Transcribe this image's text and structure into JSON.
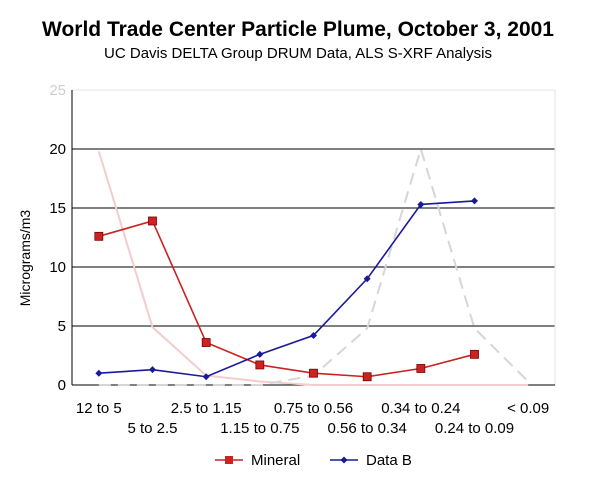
{
  "chart_data": {
    "type": "line",
    "title": "World Trade Center Particle Plume, October 3, 2001",
    "subtitle": "UC Davis DELTA Group DRUM Data,  ALS S-XRF Analysis",
    "ylabel": "Micrograms/m3",
    "xlabel": "",
    "ylim": [
      0,
      25
    ],
    "yticks": [
      "0",
      "5",
      "10",
      "15",
      "20",
      "25"
    ],
    "grid": true,
    "legend_position": "bottom",
    "categories": [
      "12 to 5",
      "5 to 2.5",
      "2.5 to 1.15",
      "1.15 to 0.75",
      "0.75 to 0.56",
      "0.56 to 0.34",
      "0.34 to 0.24",
      "0.24 to 0.09",
      "< 0.09"
    ],
    "series": [
      {
        "name": "Mineral",
        "color": "#cc2222",
        "marker": "square",
        "values": [
          12.6,
          13.9,
          3.6,
          1.7,
          1.0,
          0.7,
          1.4,
          2.6,
          null
        ]
      },
      {
        "name": "Data B",
        "color": "#1a1a99",
        "marker": "diamond",
        "values": [
          1.0,
          1.3,
          0.7,
          2.6,
          4.2,
          9.0,
          15.3,
          15.6,
          null
        ]
      },
      {
        "name": "",
        "color": "#f4cccc",
        "marker": "none",
        "values": [
          19.8,
          4.9,
          0.8,
          0.3,
          0.0,
          0.0,
          0.0,
          0.0,
          0.0
        ]
      },
      {
        "name": "",
        "color": "#d6d6d6",
        "marker": "none",
        "dashed": true,
        "values": [
          0.0,
          0.0,
          0.0,
          0.0,
          0.8,
          4.8,
          20.0,
          4.8,
          0.3
        ]
      }
    ]
  }
}
